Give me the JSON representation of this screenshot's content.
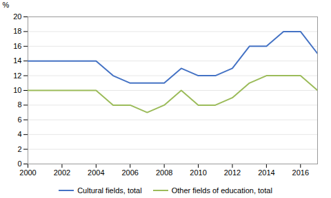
{
  "chart_data": {
    "type": "line",
    "y_label": "%",
    "x": [
      2000,
      2001,
      2002,
      2003,
      2004,
      2005,
      2006,
      2007,
      2008,
      2009,
      2010,
      2011,
      2012,
      2013,
      2014,
      2015,
      2016,
      2017
    ],
    "series": [
      {
        "name": "Cultural fields, total",
        "color": "#4472C4",
        "values": [
          14,
          14,
          14,
          14,
          14,
          12,
          11,
          11,
          11,
          13,
          12,
          12,
          13,
          16,
          16,
          18,
          18,
          15
        ]
      },
      {
        "name": "Other fields of education, total",
        "color": "#9BBB59",
        "values": [
          10,
          10,
          10,
          10,
          10,
          8,
          8,
          7,
          8,
          10,
          8,
          8,
          9,
          11,
          12,
          12,
          12,
          10
        ]
      }
    ],
    "xlim": [
      2000,
      2017
    ],
    "xticks": [
      2000,
      2002,
      2004,
      2006,
      2008,
      2010,
      2012,
      2014,
      2016
    ],
    "ylim": [
      0,
      20
    ],
    "yticks": [
      0,
      2,
      4,
      6,
      8,
      10,
      12,
      14,
      16,
      18,
      20
    ],
    "grid": true,
    "legend": "bottom"
  }
}
